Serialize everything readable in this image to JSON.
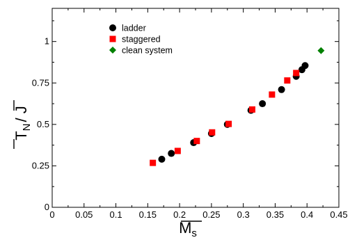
{
  "chart_data": {
    "type": "scatter",
    "title": "",
    "xlabel": {
      "main": "M",
      "sub": "s",
      "overline": true
    },
    "ylabel": {
      "part1": "T",
      "sub": "N",
      "part2": "/ J",
      "overline": true
    },
    "xlim": [
      0,
      0.45
    ],
    "ylim": [
      0,
      1.2
    ],
    "xticks": [
      "0",
      "0.05",
      "0.1",
      "0.15",
      "0.2",
      "0.25",
      "0.3",
      "0.35",
      "0.4",
      "0.45"
    ],
    "yticks": [
      "0",
      "0.25",
      "0.5",
      "0.75",
      "1"
    ],
    "grid": false,
    "legend_position": "top-left",
    "series": [
      {
        "name": "ladder",
        "marker": "circle",
        "color": "#000000",
        "x": [
          0.172,
          0.187,
          0.222,
          0.25,
          0.275,
          0.312,
          0.33,
          0.36,
          0.383,
          0.392,
          0.397
        ],
        "y": [
          0.29,
          0.325,
          0.39,
          0.445,
          0.5,
          0.585,
          0.625,
          0.71,
          0.79,
          0.83,
          0.855
        ]
      },
      {
        "name": "staggered",
        "marker": "square",
        "color": "#ff0000",
        "x": [
          0.158,
          0.197,
          0.227,
          0.251,
          0.277,
          0.314,
          0.345,
          0.369,
          0.383
        ],
        "y": [
          0.268,
          0.34,
          0.4,
          0.452,
          0.503,
          0.59,
          0.68,
          0.765,
          0.81
        ]
      },
      {
        "name": "clean system",
        "marker": "diamond",
        "color": "#008000",
        "x": [
          0.422
        ],
        "y": [
          0.945
        ]
      }
    ]
  }
}
